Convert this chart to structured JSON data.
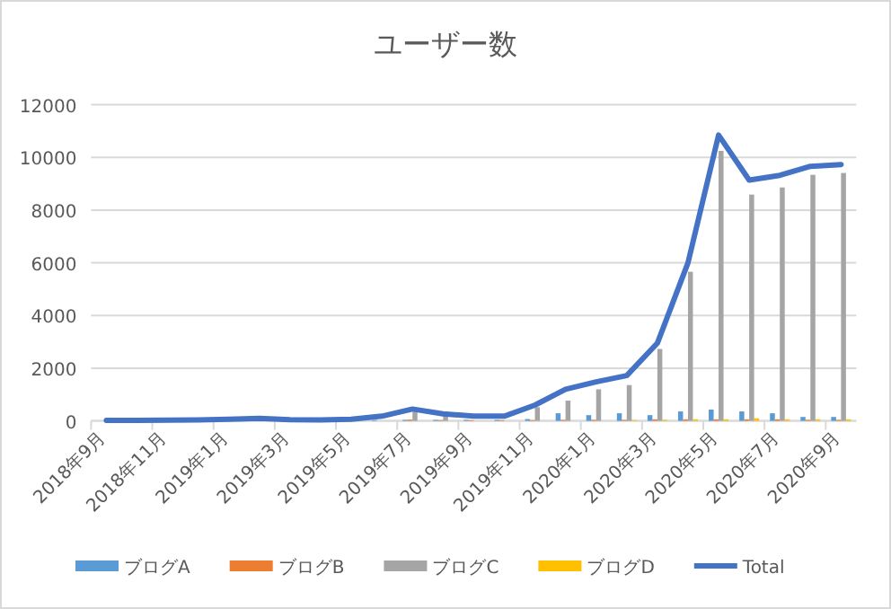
{
  "chart_data": {
    "type": "bar",
    "title": "ユーザー数",
    "categories": [
      "2018年9月",
      null,
      "2018年11月",
      null,
      "2019年1月",
      null,
      "2019年3月",
      null,
      "2019年5月",
      null,
      "2019年7月",
      null,
      "2019年9月",
      null,
      "2019年11月",
      null,
      "2020年1月",
      null,
      "2020年3月",
      null,
      "2020年5月",
      null,
      "2020年7月",
      null,
      "2020年9月"
    ],
    "series": [
      {
        "name": "ブログA",
        "color": "#5b9bd5",
        "values": [
          null,
          10,
          10,
          10,
          20,
          20,
          20,
          20,
          20,
          30,
          40,
          40,
          40,
          40,
          70,
          290,
          220,
          290,
          220,
          360,
          430,
          360,
          290,
          150,
          150
        ]
      },
      {
        "name": "ブログB",
        "color": "#ed7d31",
        "values": [
          0,
          0,
          0,
          0,
          10,
          10,
          10,
          10,
          10,
          null,
          50,
          30,
          30,
          30,
          30,
          40,
          40,
          40,
          60,
          60,
          60,
          60,
          60,
          40,
          40
        ]
      },
      {
        "name": "ブログC",
        "color": "#a5a5a5",
        "values": [
          10,
          10,
          20,
          30,
          30,
          70,
          20,
          10,
          30,
          null,
          350,
          200,
          null,
          null,
          520,
          770,
          1200,
          1360,
          2730,
          5660,
          10250,
          8590,
          8860,
          9340,
          9410
        ]
      },
      {
        "name": "ブログD",
        "color": "#ffc000",
        "values": [
          0,
          0,
          0,
          0,
          0,
          0,
          0,
          0,
          0,
          0,
          null,
          0,
          0,
          0,
          0,
          0,
          0,
          30,
          40,
          60,
          60,
          100,
          60,
          60,
          60
        ]
      },
      {
        "name": "Total",
        "type": "line",
        "color": "#4472c4",
        "values": [
          20,
          20,
          30,
          40,
          60,
          100,
          50,
          40,
          60,
          180,
          450,
          270,
          180,
          180,
          600,
          1200,
          1480,
          1720,
          2950,
          6000,
          10850,
          9140,
          9320,
          9660,
          9730
        ]
      }
    ],
    "ylim": [
      0,
      12000
    ],
    "yticks": [
      0,
      2000,
      4000,
      6000,
      8000,
      10000,
      12000
    ],
    "grid": "y",
    "legend": "bottom"
  }
}
